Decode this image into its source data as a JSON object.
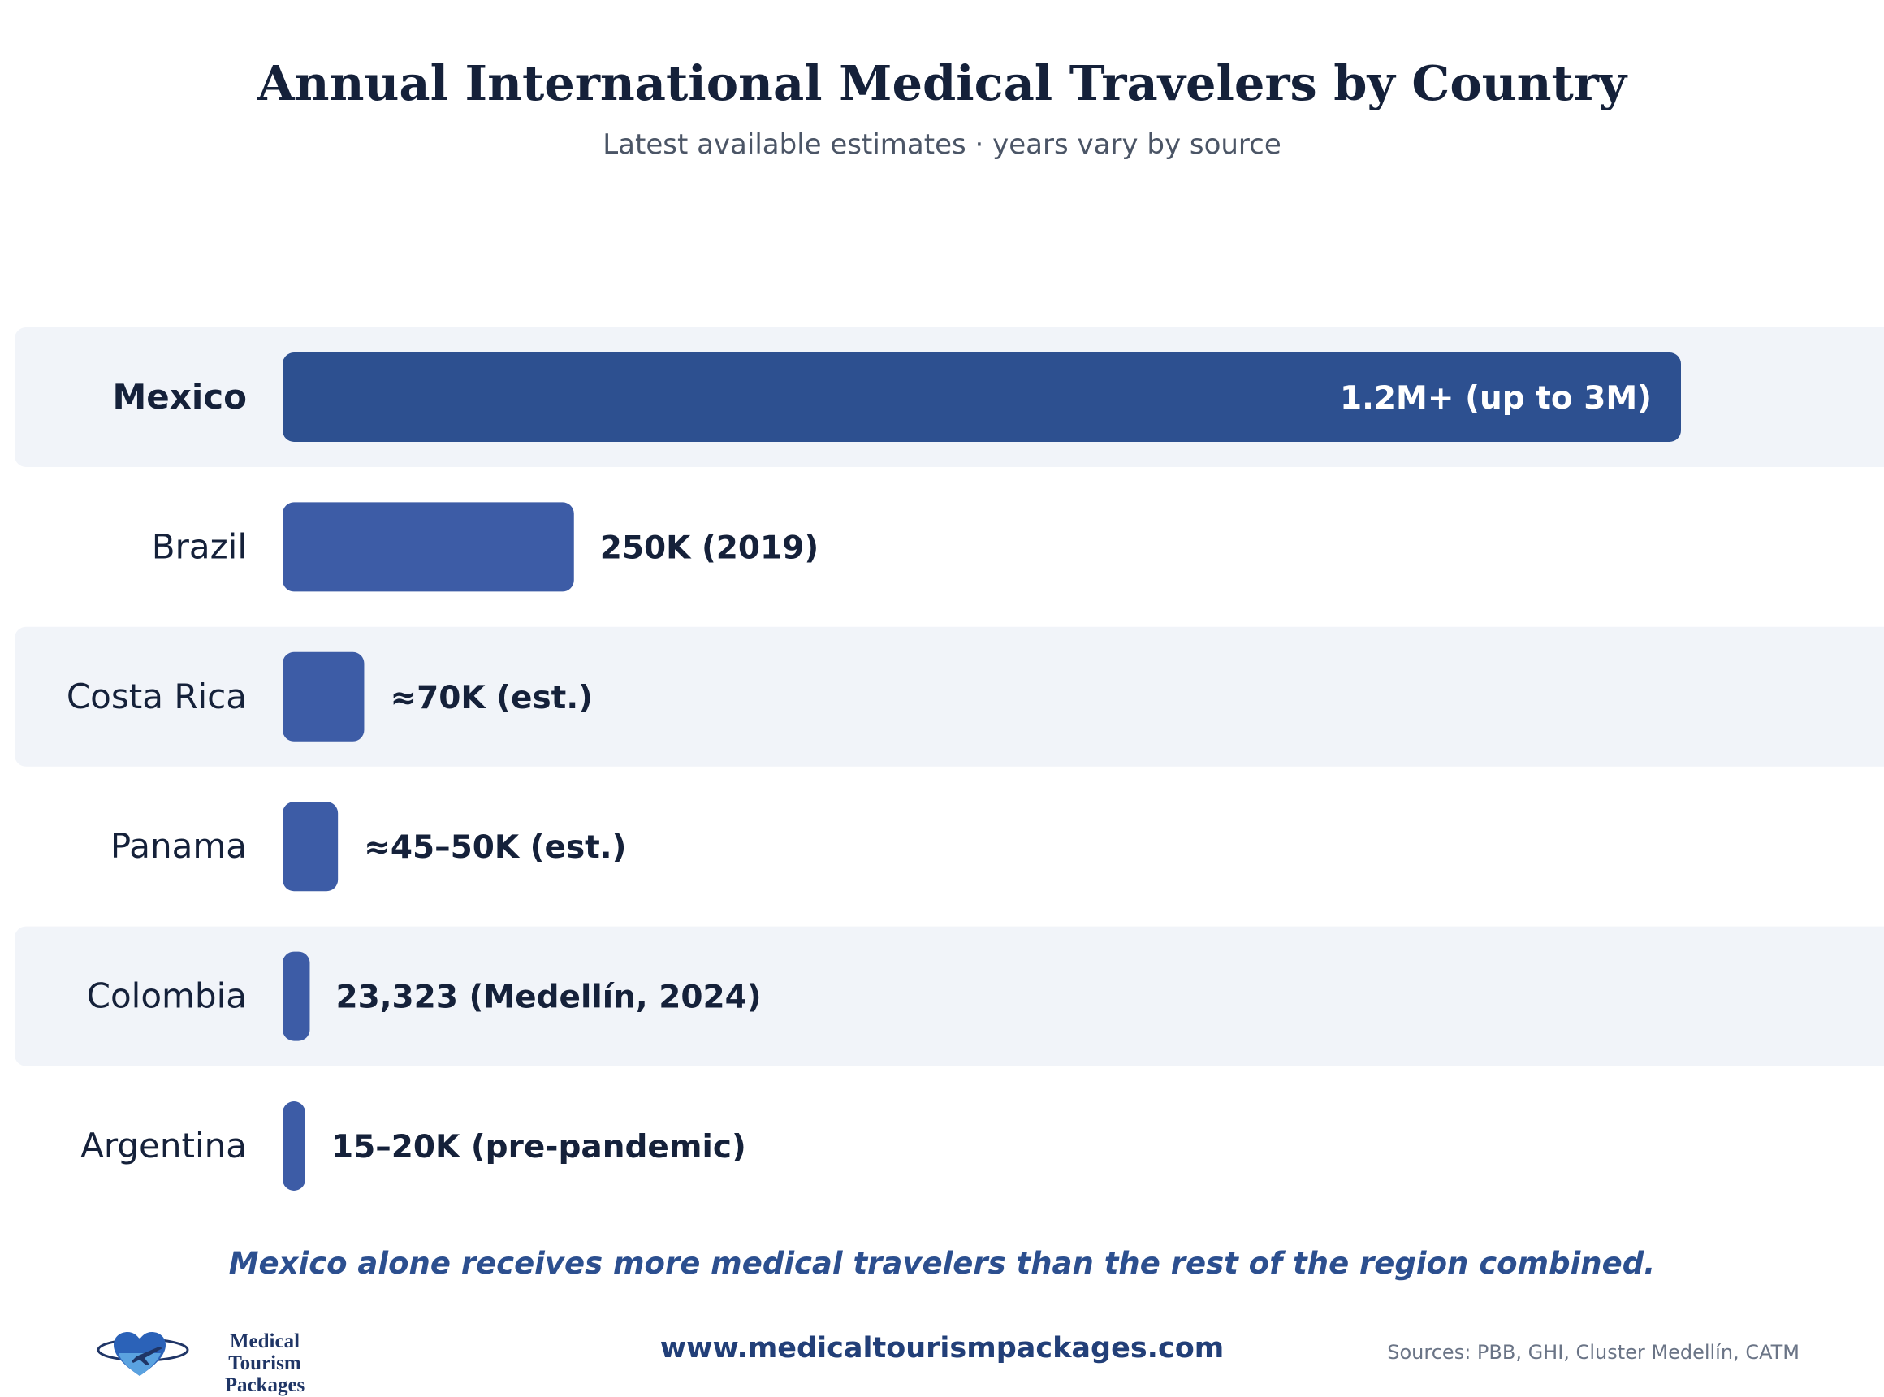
{
  "chart_data": {
    "type": "bar",
    "orientation": "horizontal",
    "title": "Annual International Medical Travelers by Country",
    "subtitle": "Latest available estimates · years vary by source",
    "categories": [
      "Mexico",
      "Brazil",
      "Costa Rica",
      "Panama",
      "Colombia",
      "Argentina"
    ],
    "values": [
      1200000,
      250000,
      70000,
      47500,
      23323,
      17500
    ],
    "value_labels": [
      "1.2M+ (up to 3M)",
      "250K (2019)",
      "≈70K (est.)",
      "≈45–50K (est.)",
      "23,323 (Medellín, 2024)",
      "15–20K (pre-pandemic)"
    ],
    "highlight": "Mexico",
    "colors": {
      "highlight_bar": "#2d5090",
      "bar": "#3d5ca6",
      "row_band": "#f1f4f9",
      "label_text": "#15213a"
    },
    "grid": false
  },
  "insight": "Mexico alone receives more medical travelers than the rest of the region combined.",
  "footer": {
    "logo_line1": "Medical Tourism",
    "logo_line2": "Packages",
    "logo_icon": "heart-plane-icon",
    "website": "www.medicaltourismpackages.com",
    "sources": "Sources: PBB, GHI, Cluster Medellín, CATM"
  }
}
